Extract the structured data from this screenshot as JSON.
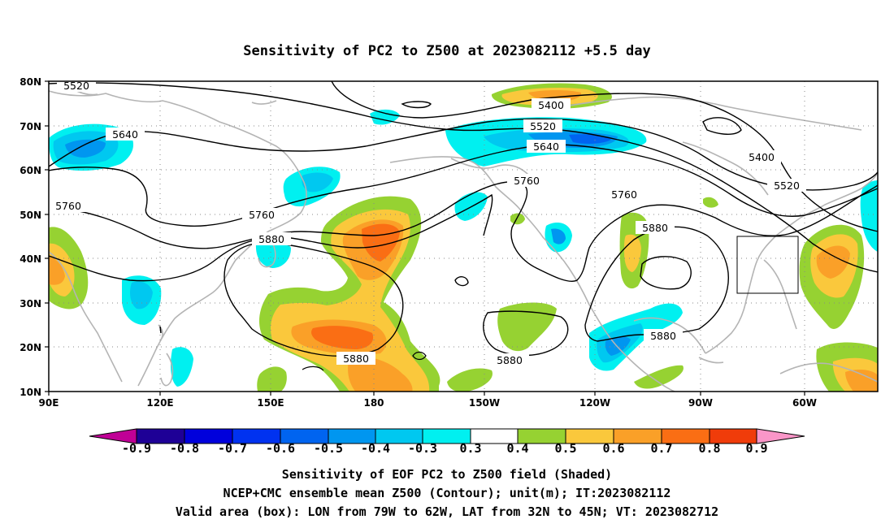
{
  "title": "Sensitivity of PC2 to Z500 at 2023082112 +5.5 day",
  "map": {
    "lon_labels": [
      "90E",
      "120E",
      "150E",
      "180",
      "150W",
      "120W",
      "90W",
      "60W"
    ],
    "lat_labels": [
      "80N",
      "70N",
      "60N",
      "50N",
      "40N",
      "30N",
      "20N",
      "10N"
    ],
    "contour_labels": [
      "5520",
      "5640",
      "5760",
      "5760",
      "5880",
      "5400",
      "5520",
      "5640",
      "5760",
      "5760",
      "5880",
      "5400",
      "5520",
      "5880",
      "5880",
      "5880"
    ],
    "colors": {
      "coast": "#b4b4b4",
      "contour": "#000000",
      "pos_03_04": "#96d232",
      "pos_04_05": "#fac83c",
      "pos_05_06": "#faa028",
      "pos_06_07": "#fa6e14",
      "pos_07_08": "#f03c0a",
      "neg_03_04": "#00f0f0",
      "neg_04_05": "#00c8f0",
      "neg_05_06": "#0096f0",
      "neg_06_07": "#0064f0"
    }
  },
  "colorbar": {
    "labels": [
      "-0.9",
      "-0.8",
      "-0.7",
      "-0.6",
      "-0.5",
      "-0.4",
      "-0.3",
      "0.3",
      "0.4",
      "0.5",
      "0.6",
      "0.7",
      "0.8",
      "0.9"
    ],
    "colors": [
      "#1e0096",
      "#0000dc",
      "#0032f0",
      "#0064f0",
      "#0096f0",
      "#00c8f0",
      "#00f0f0",
      "#ffffff",
      "#96d232",
      "#fac83c",
      "#faa028",
      "#fa6e14",
      "#f03c0a",
      "#fa0000"
    ],
    "low_end_color": "#c00096",
    "high_end_color": "#fa96c8"
  },
  "caption": {
    "line1": "Sensitivity of EOF PC2 to Z500 field (Shaded)",
    "line2": "NCEP+CMC ensemble mean Z500 (Contour); unit(m); IT:2023082112",
    "line3": "Valid area (box): LON from 79W to 62W, LAT from 32N to 45N; VT: 2023082712"
  }
}
